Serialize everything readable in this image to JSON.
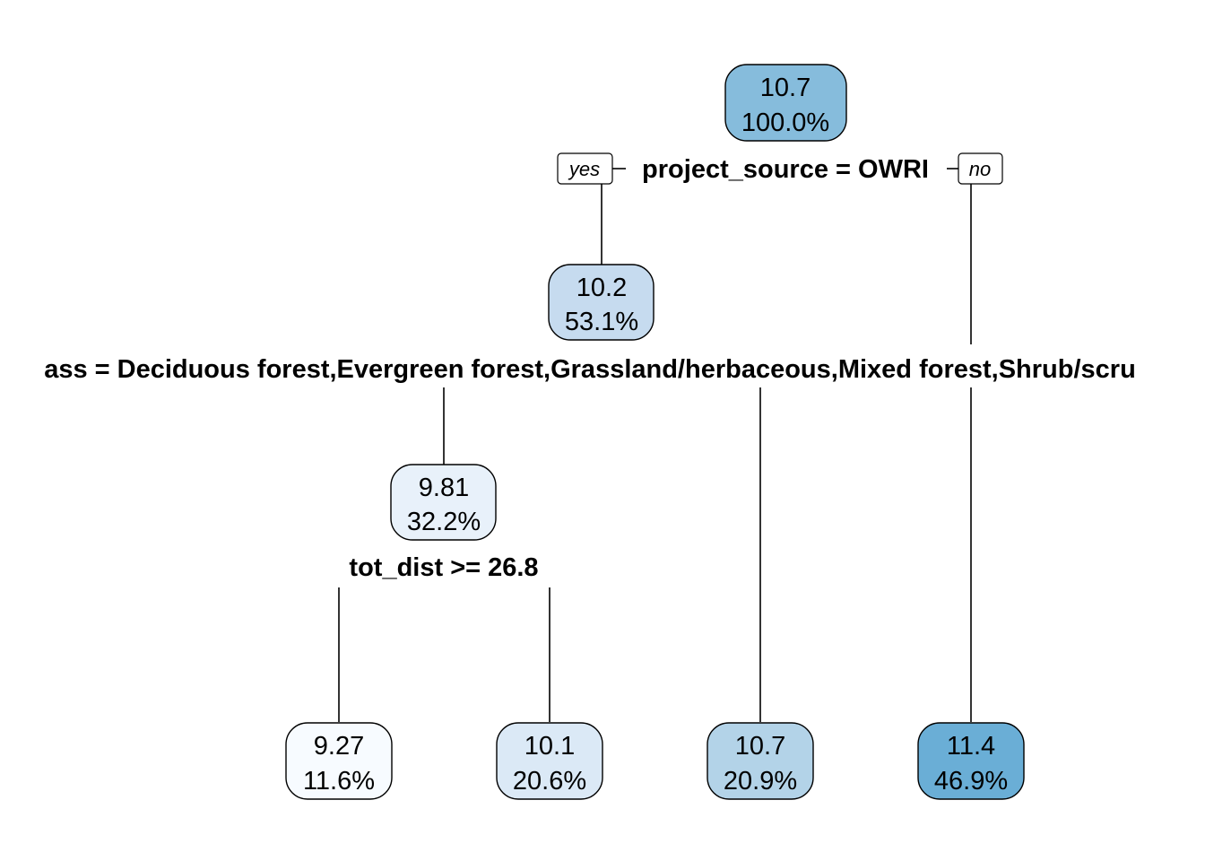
{
  "tree": {
    "nodes": [
      {
        "id": "root",
        "value": "10.7",
        "percent": "100.0%",
        "fill": "#86bcdc"
      },
      {
        "id": "n2",
        "value": "10.2",
        "percent": "53.1%",
        "fill": "#c6dbef"
      },
      {
        "id": "n4",
        "value": "9.81",
        "percent": "32.2%",
        "fill": "#e8f1fa"
      },
      {
        "id": "leaf1",
        "value": "9.27",
        "percent": "11.6%",
        "fill": "#f7fbff"
      },
      {
        "id": "leaf2",
        "value": "10.1",
        "percent": "20.6%",
        "fill": "#dbe9f6"
      },
      {
        "id": "leaf3",
        "value": "10.7",
        "percent": "20.9%",
        "fill": "#b3d3e8"
      },
      {
        "id": "leaf4",
        "value": "11.4",
        "percent": "46.9%",
        "fill": "#6aaed6"
      }
    ],
    "splits": {
      "root": "project_source = OWRI",
      "n2": "ass = Deciduous forest,Evergreen forest,Grassland/herbaceous,Mixed forest,Shrub/scru",
      "n4": "tot_dist >= 26.8"
    },
    "branch_tags": {
      "yes": "yes",
      "no": "no"
    }
  }
}
